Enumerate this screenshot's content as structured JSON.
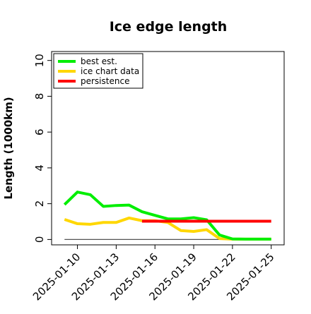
{
  "chart_data": {
    "type": "line",
    "title": "Ice edge length",
    "xlabel": "",
    "ylabel": "Length (1000km)",
    "ylim": [
      -0.3,
      10.5
    ],
    "xlim": [
      "2025-01-08",
      "2025-01-26"
    ],
    "yticks": [
      0,
      2,
      4,
      6,
      8,
      10
    ],
    "xticks": [
      "2025-01-10",
      "2025-01-13",
      "2025-01-16",
      "2025-01-19",
      "2025-01-22",
      "2025-01-25"
    ],
    "grid": false,
    "legend_position": "top-left",
    "reference_line": {
      "y": 0,
      "from": "2025-01-09",
      "to": "2025-01-25",
      "color": "#555555"
    },
    "series": [
      {
        "name": "best est.",
        "color": "#00ee00",
        "x": [
          "2025-01-09",
          "2025-01-10",
          "2025-01-11",
          "2025-01-12",
          "2025-01-13",
          "2025-01-14",
          "2025-01-15",
          "2025-01-16",
          "2025-01-17",
          "2025-01-18",
          "2025-01-19",
          "2025-01-20",
          "2025-01-21",
          "2025-01-22",
          "2025-01-23",
          "2025-01-24",
          "2025-01-25"
        ],
        "values": [
          1.95,
          2.65,
          2.5,
          1.85,
          1.9,
          1.92,
          1.55,
          1.35,
          1.15,
          1.15,
          1.22,
          1.1,
          0.25,
          0.03,
          0.02,
          0.02,
          0.02
        ]
      },
      {
        "name": "ice chart data",
        "color": "#ffd700",
        "x": [
          "2025-01-09",
          "2025-01-10",
          "2025-01-11",
          "2025-01-12",
          "2025-01-13",
          "2025-01-14",
          "2025-01-15",
          "2025-01-16",
          "2025-01-17",
          "2025-01-18",
          "2025-01-19",
          "2025-01-20",
          "2025-01-21",
          "2025-01-22",
          "2025-01-23",
          "2025-01-24",
          "2025-01-25"
        ],
        "values": [
          1.12,
          0.88,
          0.85,
          0.95,
          0.95,
          1.2,
          1.05,
          1.05,
          0.95,
          0.5,
          0.45,
          0.55,
          0.05,
          0.02,
          0.02,
          0.02,
          0.02
        ]
      },
      {
        "name": "persistence",
        "color": "#ff0000",
        "x": [
          "2025-01-15",
          "2025-01-25"
        ],
        "values": [
          1.02,
          1.02
        ]
      }
    ]
  }
}
